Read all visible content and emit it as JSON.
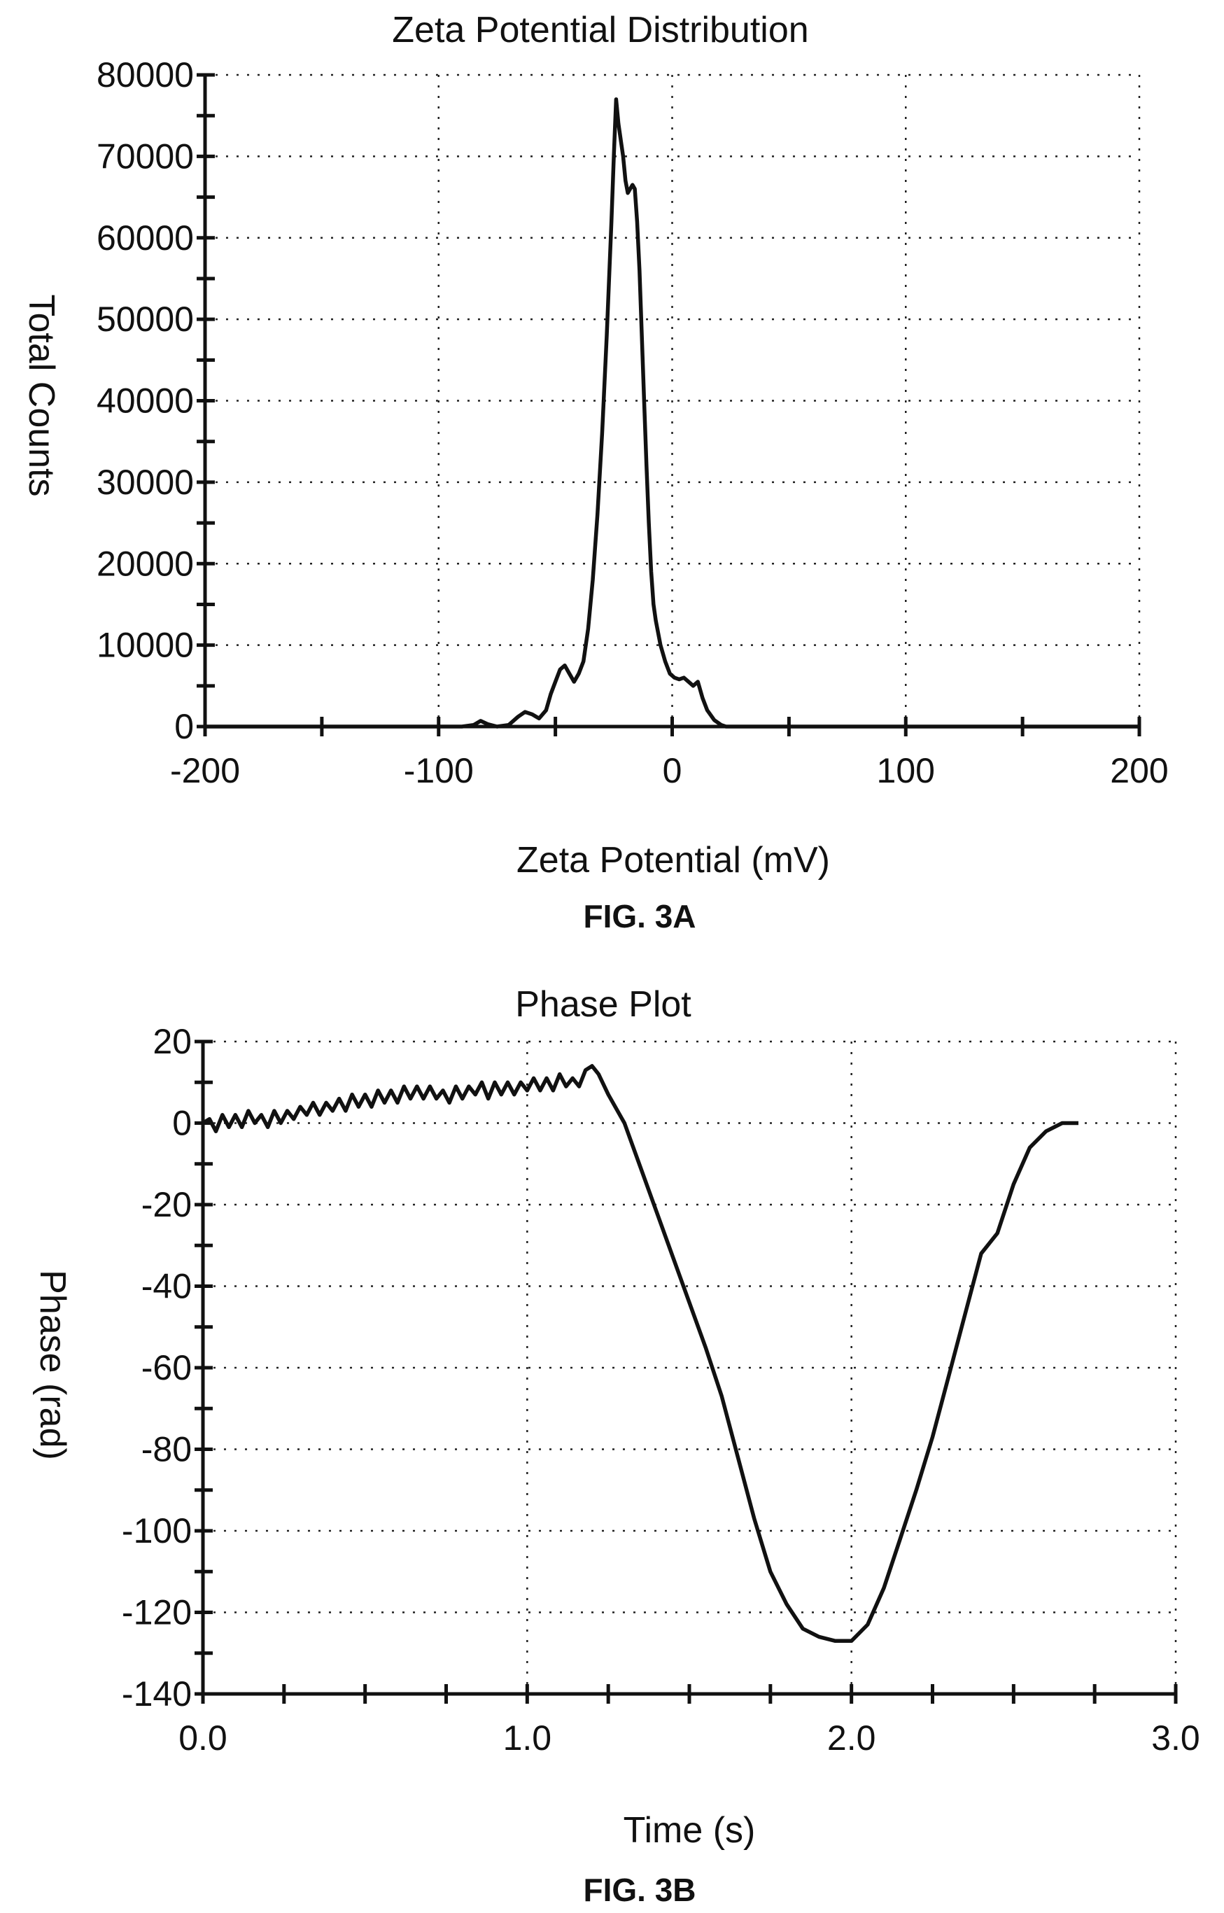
{
  "chart_data": [
    {
      "type": "line",
      "title": "Zeta Potential Distribution",
      "xlabel": "Zeta Potential (mV)",
      "ylabel": "Total Counts",
      "figure_label": "FIG. 3A",
      "xlim": [
        -200,
        200
      ],
      "ylim": [
        0,
        80000
      ],
      "x_tick_labels": [
        "-200",
        "-100",
        "0",
        "100",
        "200"
      ],
      "y_tick_labels": [
        "0",
        "10000",
        "20000",
        "30000",
        "40000",
        "50000",
        "60000",
        "70000",
        "80000"
      ],
      "grid": true,
      "legend": "none",
      "series": [
        {
          "x": [
            -200,
            -90,
            -85,
            -82,
            -79,
            -75,
            -70,
            -66,
            -63,
            -60,
            -57,
            -54,
            -52,
            -50,
            -48,
            -46,
            -44,
            -42,
            -40,
            -38,
            -36,
            -34,
            -32,
            -30,
            -28,
            -26,
            -25,
            -24,
            -23,
            -21,
            -20,
            -19,
            -18,
            -17,
            -16,
            -15,
            -14,
            -13,
            -12,
            -11,
            -10,
            -9,
            -8,
            -7,
            -5,
            -3,
            -1,
            1,
            3,
            5,
            7,
            9,
            11,
            13,
            15,
            18,
            21,
            23,
            25,
            30,
            200
          ],
          "y": [
            0,
            0,
            200,
            700,
            300,
            0,
            200,
            1200,
            1800,
            1500,
            1000,
            2000,
            4000,
            5500,
            7000,
            7500,
            6500,
            5500,
            6500,
            8000,
            12000,
            18000,
            26000,
            36000,
            48000,
            62000,
            70000,
            77000,
            74000,
            70000,
            67000,
            65500,
            66000,
            66500,
            66000,
            62000,
            56000,
            48000,
            40000,
            32000,
            25000,
            19000,
            15000,
            13000,
            10000,
            8000,
            6500,
            6000,
            5800,
            6000,
            5500,
            5000,
            5500,
            3500,
            2000,
            800,
            200,
            0,
            0,
            0,
            0
          ]
        }
      ]
    },
    {
      "type": "line",
      "title": "Phase Plot",
      "xlabel": "Time (s)",
      "ylabel": "Phase (rad)",
      "figure_label": "FIG. 3B",
      "xlim": [
        0,
        3
      ],
      "ylim": [
        -140,
        20
      ],
      "x_tick_labels": [
        "0.0",
        "1.0",
        "2.0",
        "3.0"
      ],
      "y_tick_labels": [
        "20",
        "0",
        "-20",
        "-40",
        "-60",
        "-80",
        "-100",
        "-120",
        "-140"
      ],
      "grid": true,
      "legend": "none",
      "series": [
        {
          "x": [
            0.0,
            0.02,
            0.04,
            0.06,
            0.08,
            0.1,
            0.12,
            0.14,
            0.16,
            0.18,
            0.2,
            0.22,
            0.24,
            0.26,
            0.28,
            0.3,
            0.32,
            0.34,
            0.36,
            0.38,
            0.4,
            0.42,
            0.44,
            0.46,
            0.48,
            0.5,
            0.52,
            0.54,
            0.56,
            0.58,
            0.6,
            0.62,
            0.64,
            0.66,
            0.68,
            0.7,
            0.72,
            0.74,
            0.76,
            0.78,
            0.8,
            0.82,
            0.84,
            0.86,
            0.88,
            0.9,
            0.92,
            0.94,
            0.96,
            0.98,
            1.0,
            1.02,
            1.04,
            1.06,
            1.08,
            1.1,
            1.12,
            1.14,
            1.16,
            1.18,
            1.2,
            1.22,
            1.25,
            1.3,
            1.35,
            1.4,
            1.45,
            1.5,
            1.55,
            1.6,
            1.65,
            1.7,
            1.75,
            1.8,
            1.85,
            1.9,
            1.95,
            2.0,
            2.05,
            2.1,
            2.15,
            2.2,
            2.25,
            2.3,
            2.35,
            2.4,
            2.45,
            2.5,
            2.55,
            2.6,
            2.65,
            2.7
          ],
          "y": [
            0,
            1,
            -2,
            2,
            -1,
            2,
            -1,
            3,
            0,
            2,
            -1,
            3,
            0,
            3,
            1,
            4,
            2,
            5,
            2,
            5,
            3,
            6,
            3,
            7,
            4,
            7,
            4,
            8,
            5,
            8,
            5,
            9,
            6,
            9,
            6,
            9,
            6,
            8,
            5,
            9,
            6,
            9,
            7,
            10,
            6,
            10,
            7,
            10,
            7,
            10,
            8,
            11,
            8,
            11,
            8,
            12,
            9,
            11,
            9,
            13,
            14,
            12,
            7,
            0,
            -11,
            -22,
            -33,
            -44,
            -55,
            -67,
            -82,
            -97,
            -110,
            -118,
            -124,
            -126,
            -127,
            -127,
            -123,
            -114,
            -102,
            -90,
            -77,
            -62,
            -47,
            -32,
            -27,
            -15,
            -6,
            -2,
            0,
            0
          ]
        }
      ]
    }
  ]
}
